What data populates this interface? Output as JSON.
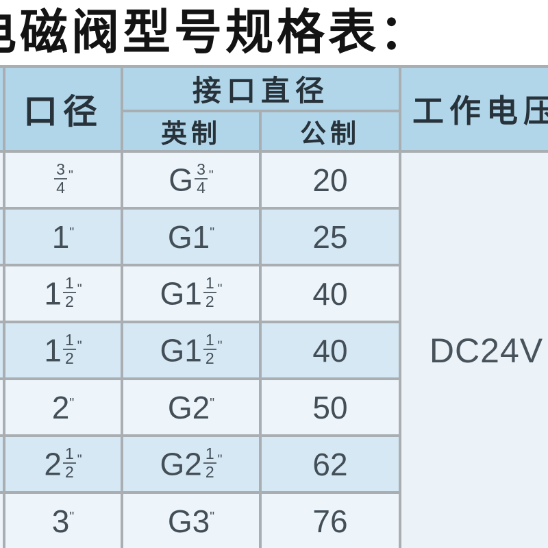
{
  "page": {
    "title": "电磁阀型号规格表："
  },
  "table": {
    "headers": {
      "bore": "口径",
      "interface_diameter": "接口直径",
      "imperial": "英制",
      "metric": "公制",
      "working_voltage": "工作电压"
    },
    "rows": [
      {
        "bore": "3/4\"",
        "imperial": "G3/4\"",
        "metric": "20"
      },
      {
        "bore": "1\"",
        "imperial": "G1\"",
        "metric": "25"
      },
      {
        "bore": "1 1/2\"",
        "imperial": "G1 1/2\"",
        "metric": "40"
      },
      {
        "bore": "1 1/2\"",
        "imperial": "G1 1/2\"",
        "metric": "40"
      },
      {
        "bore": "2\"",
        "imperial": "G2\"",
        "metric": "50"
      },
      {
        "bore": "2 1/2\"",
        "imperial": "G2 1/2\"",
        "metric": "62"
      },
      {
        "bore": "3\"",
        "imperial": "G3\"",
        "metric": "76"
      }
    ],
    "voltage_value": "DC24V"
  },
  "colors": {
    "header_bg": "#b2d6e9",
    "row_odd_bg": "#eef5fa",
    "row_even_bg": "#d6e8f4",
    "voltage_cell_bg": "#ebf3f9",
    "border": "#a9aeb2",
    "header_text": "#27323a",
    "data_text": "#434e57",
    "title_text": "#131313"
  }
}
